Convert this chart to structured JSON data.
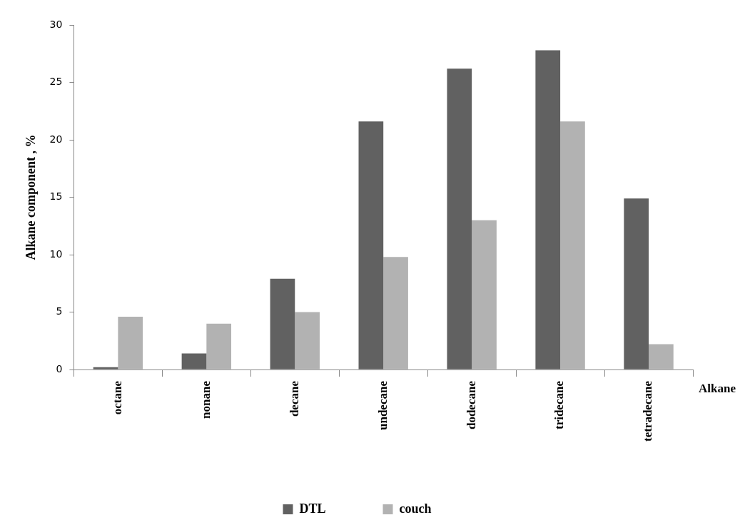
{
  "chart_data": {
    "type": "bar",
    "xlabel": "Alkane",
    "ylabel": "Alkane component , %",
    "categories": [
      "octane",
      "nonane",
      "decane",
      "undecane",
      "dodecane",
      "tridecane",
      "tetradecane"
    ],
    "series": [
      {
        "name": "DTL",
        "color": "#616161",
        "values": [
          0.2,
          1.4,
          7.9,
          21.6,
          26.2,
          27.8,
          14.9
        ]
      },
      {
        "name": "couch",
        "color": "#b2b2b2",
        "values": [
          4.6,
          4.0,
          5.0,
          9.8,
          13.0,
          21.6,
          2.2
        ]
      }
    ],
    "ylim": [
      0,
      30
    ],
    "yticks": [
      0,
      5,
      10,
      15,
      20,
      25,
      30
    ],
    "grid": false,
    "legend": "bottom"
  }
}
